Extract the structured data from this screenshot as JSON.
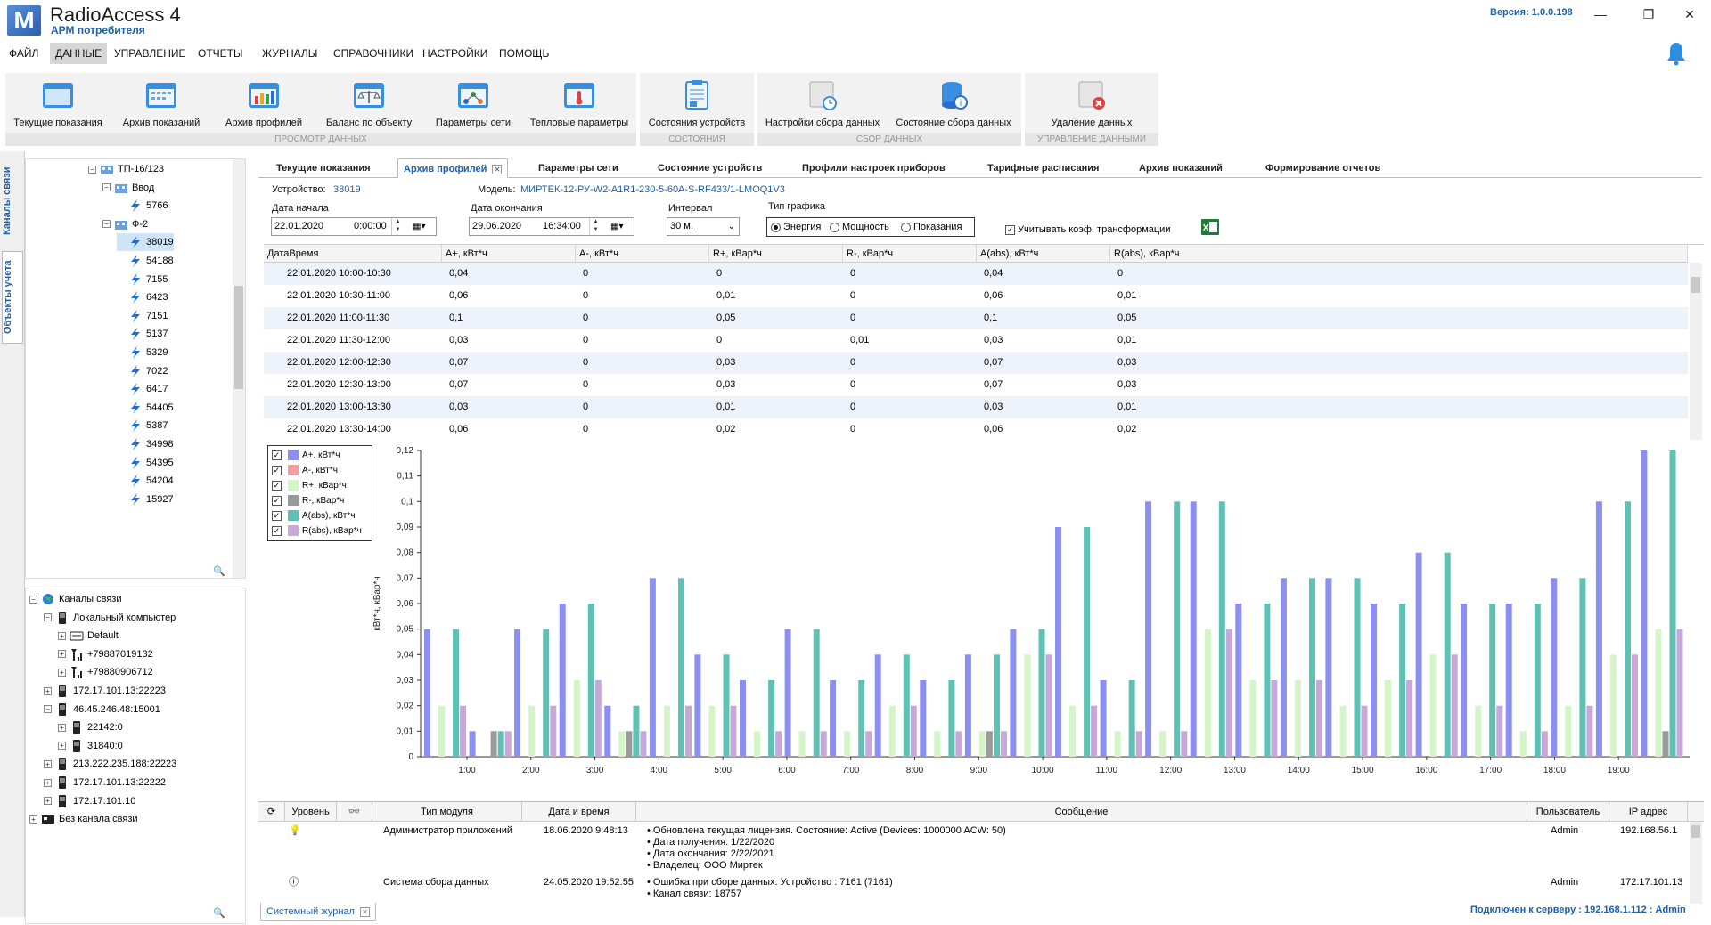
{
  "app": {
    "logo_letter": "M",
    "title": "RadioAccess 4",
    "subtitle": "АРМ потребителя",
    "version": "Версия:  1.0.0.198"
  },
  "menu": [
    "ФАЙЛ",
    "ДАННЫЕ",
    "УПРАВЛЕНИЕ",
    "ОТЧЕТЫ",
    "ЖУРНАЛЫ",
    "СПРАВОЧНИКИ",
    "НАСТРОЙКИ",
    "ПОМОЩЬ"
  ],
  "ribbon": {
    "groups": [
      {
        "title": "ПРОСМОТР ДАННЫХ",
        "buttons": [
          "Текущие показания",
          "Архив показаний",
          "Архив профилей",
          "Баланс по объекту",
          "Параметры сети",
          "Тепловые параметры"
        ]
      },
      {
        "title": "СОСТОЯНИЯ",
        "buttons": [
          "Состояния устройств"
        ]
      },
      {
        "title": "СБОР ДАННЫХ",
        "buttons": [
          "Настройки сбора данных",
          "Состояние сбора данных"
        ]
      },
      {
        "title": "УПРАВЛЕНИЕ ДАННЫМИ",
        "buttons": [
          "Удаление данных"
        ]
      }
    ]
  },
  "vtabs": [
    "Каналы связи",
    "Объекты учета"
  ],
  "tree_top": [
    {
      "label": "ТП-16/123",
      "indent": 0,
      "expander": "−",
      "icon": "folder"
    },
    {
      "label": "Ввод",
      "indent": 1,
      "expander": "−",
      "icon": "folder"
    },
    {
      "label": "5766",
      "indent": 2,
      "expander": "",
      "icon": "meter"
    },
    {
      "label": "Ф-2",
      "indent": 1,
      "expander": "−",
      "icon": "folder"
    },
    {
      "label": "38019",
      "indent": 2,
      "expander": "",
      "icon": "meter",
      "selected": true
    },
    {
      "label": "54188",
      "indent": 2,
      "expander": "",
      "icon": "meter"
    },
    {
      "label": "7155",
      "indent": 2,
      "expander": "",
      "icon": "meter"
    },
    {
      "label": "6423",
      "indent": 2,
      "expander": "",
      "icon": "meter"
    },
    {
      "label": "7151",
      "indent": 2,
      "expander": "",
      "icon": "meter"
    },
    {
      "label": "5137",
      "indent": 2,
      "expander": "",
      "icon": "meter"
    },
    {
      "label": "5329",
      "indent": 2,
      "expander": "",
      "icon": "meter"
    },
    {
      "label": "7022",
      "indent": 2,
      "expander": "",
      "icon": "meter"
    },
    {
      "label": "6417",
      "indent": 2,
      "expander": "",
      "icon": "meter"
    },
    {
      "label": "54405",
      "indent": 2,
      "expander": "",
      "icon": "meter"
    },
    {
      "label": "5387",
      "indent": 2,
      "expander": "",
      "icon": "meter"
    },
    {
      "label": "34998",
      "indent": 2,
      "expander": "",
      "icon": "meter"
    },
    {
      "label": "54395",
      "indent": 2,
      "expander": "",
      "icon": "meter"
    },
    {
      "label": "54204",
      "indent": 2,
      "expander": "",
      "icon": "meter"
    },
    {
      "label": "15927",
      "indent": 2,
      "expander": "",
      "icon": "meter"
    }
  ],
  "tree_bottom": [
    {
      "label": "Каналы связи",
      "indent": 0,
      "expander": "−",
      "icon": "globe"
    },
    {
      "label": "Локальный компьютер",
      "indent": 1,
      "expander": "−",
      "icon": "device"
    },
    {
      "label": "Default",
      "indent": 2,
      "expander": "+",
      "icon": "modem"
    },
    {
      "label": "+79887019132",
      "indent": 2,
      "expander": "+",
      "icon": "antenna"
    },
    {
      "label": "+79880906712",
      "indent": 2,
      "expander": "+",
      "icon": "antenna"
    },
    {
      "label": "172.17.101.13:22223",
      "indent": 1,
      "expander": "+",
      "icon": "device"
    },
    {
      "label": "46.45.246.48:15001",
      "indent": 1,
      "expander": "−",
      "icon": "device"
    },
    {
      "label": "22142:0",
      "indent": 2,
      "expander": "+",
      "icon": "device"
    },
    {
      "label": "31840:0",
      "indent": 2,
      "expander": "+",
      "icon": "device"
    },
    {
      "label": "213.222.235.188:22223",
      "indent": 1,
      "expander": "+",
      "icon": "device"
    },
    {
      "label": "172.17.101.13:22222",
      "indent": 1,
      "expander": "+",
      "icon": "device"
    },
    {
      "label": "172.17.101.10",
      "indent": 1,
      "expander": "+",
      "icon": "device"
    },
    {
      "label": "Без канала связи",
      "indent": 0,
      "expander": "+",
      "icon": "nochannel"
    }
  ],
  "content_tabs": [
    "Текущие показания",
    "Архив профилей",
    "Параметры сети",
    "Состояние устройств",
    "Профили настроек приборов",
    "Тарифные расписания",
    "Архив показаний",
    "Формирование отчетов"
  ],
  "filters": {
    "device_label": "Устройство:",
    "device_value": "38019",
    "model_label": "Модель:",
    "model_value": "МИРТЕК-12-РУ-W2-А1R1-230-5-60А-S-RF433/1-LMOQ1V3",
    "start_label": "Дата начала",
    "start_date": "22.01.2020",
    "start_time": "0:00:00",
    "end_label": "Дата окончания",
    "end_date": "29.06.2020",
    "end_time": "16:34:00",
    "interval_label": "Интервал",
    "interval_value": "30 м.",
    "graph_type_label": "Тип графика",
    "graph_types": [
      "Энергия",
      "Мощность",
      "Показания"
    ],
    "graph_type_selected": "Энергия",
    "transform_label": "Учитывать коэф. трансформации",
    "transform_checked": true
  },
  "grid": {
    "columns": [
      "ДатаВремя",
      "A+, кВт*ч",
      "A-, кВт*ч",
      "R+, кВар*ч",
      "R-, кВар*ч",
      "A(abs), кВт*ч",
      "R(abs), кВар*ч"
    ],
    "rows": [
      [
        "22.01.2020 10:00-10:30",
        "0,04",
        "0",
        "0",
        "0",
        "0,04",
        "0"
      ],
      [
        "22.01.2020 10:30-11:00",
        "0,06",
        "0",
        "0,01",
        "0",
        "0,06",
        "0,01"
      ],
      [
        "22.01.2020 11:00-11:30",
        "0,1",
        "0",
        "0,05",
        "0",
        "0,1",
        "0,05"
      ],
      [
        "22.01.2020 11:30-12:00",
        "0,03",
        "0",
        "0",
        "0,01",
        "0,03",
        "0,01"
      ],
      [
        "22.01.2020 12:00-12:30",
        "0,07",
        "0",
        "0,03",
        "0",
        "0,07",
        "0,03"
      ],
      [
        "22.01.2020 12:30-13:00",
        "0,07",
        "0",
        "0,03",
        "0",
        "0,07",
        "0,03"
      ],
      [
        "22.01.2020 13:00-13:30",
        "0,03",
        "0",
        "0,01",
        "0",
        "0,03",
        "0,01"
      ],
      [
        "22.01.2020 13:30-14:00",
        "0,06",
        "0",
        "0,02",
        "0",
        "0,06",
        "0,02"
      ]
    ]
  },
  "colors": {
    "a_plus": "#8a8ff0",
    "a_minus": "#f0a0a0",
    "r_plus": "#d4f5c8",
    "r_minus": "#9a9a9a",
    "a_abs": "#5fc0b4",
    "r_abs": "#c8a8d8",
    "accent": "#1f5fa8"
  },
  "chart_data": {
    "type": "bar",
    "ylabel": "кВт*ч, кВар*ч",
    "ylim": [
      0,
      0.12
    ],
    "yticks": [
      "0",
      "0,01",
      "0,02",
      "0,03",
      "0,04",
      "0,05",
      "0,06",
      "0,07",
      "0,08",
      "0,09",
      "0,1",
      "0,11",
      "0,12"
    ],
    "xticks": [
      "1:00",
      "2:00",
      "3:00",
      "4:00",
      "5:00",
      "6:00",
      "7:00",
      "8:00",
      "9:00",
      "10:00",
      "11:00",
      "12:00",
      "13:00",
      "14:00",
      "15:00",
      "16:00",
      "17:00",
      "18:00",
      "19:00"
    ],
    "legend_position": "top-left",
    "series": [
      {
        "name": "A+, кВт*ч",
        "values": [
          0.05,
          0.01,
          0.05,
          0.06,
          0.02,
          0.07,
          0.04,
          0.03,
          0.05,
          0.03,
          0.04,
          0.03,
          0.04,
          0.05,
          0.09,
          0.03,
          0.1,
          0.1,
          0.06,
          0.07,
          0.07,
          0.06,
          0.08,
          0.06,
          0.06,
          0.07,
          0.1,
          0.12
        ]
      },
      {
        "name": "A-, кВт*ч",
        "values": [
          0,
          0,
          0,
          0,
          0,
          0,
          0,
          0,
          0,
          0,
          0,
          0,
          0,
          0,
          0,
          0,
          0,
          0,
          0,
          0,
          0,
          0,
          0,
          0,
          0,
          0,
          0,
          0
        ]
      },
      {
        "name": "R+, кВар*ч",
        "values": [
          0.02,
          0,
          0.02,
          0.03,
          0.01,
          0.02,
          0.02,
          0.01,
          0.01,
          0.01,
          0.02,
          0.01,
          0.01,
          0.04,
          0.02,
          0.01,
          0.01,
          0.05,
          0.03,
          0.03,
          0.02,
          0.03,
          0.04,
          0.02,
          0.01,
          0.02,
          0.04,
          0.05
        ]
      },
      {
        "name": "R-, кВар*ч",
        "values": [
          0,
          0.01,
          0,
          0,
          0.01,
          0,
          0,
          0,
          0,
          0,
          0,
          0,
          0.01,
          0,
          0,
          0,
          0,
          0,
          0,
          0,
          0,
          0,
          0,
          0,
          0,
          0,
          0,
          0.01
        ]
      },
      {
        "name": "A(abs), кВт*ч",
        "values": [
          0.05,
          0.01,
          0.05,
          0.06,
          0.02,
          0.07,
          0.04,
          0.03,
          0.05,
          0.03,
          0.04,
          0.03,
          0.04,
          0.05,
          0.09,
          0.03,
          0.1,
          0.1,
          0.06,
          0.07,
          0.07,
          0.06,
          0.08,
          0.06,
          0.06,
          0.07,
          0.1,
          0.12
        ]
      },
      {
        "name": "R(abs), кВар*ч",
        "values": [
          0.02,
          0.01,
          0.02,
          0.03,
          0.01,
          0.02,
          0.02,
          0.01,
          0.01,
          0.01,
          0.02,
          0.01,
          0.01,
          0.04,
          0.02,
          0.01,
          0.01,
          0.05,
          0.03,
          0.03,
          0.02,
          0.03,
          0.04,
          0.02,
          0.01,
          0.02,
          0.04,
          0.05
        ]
      }
    ]
  },
  "log": {
    "columns": [
      "Уровень",
      "Тип модуля",
      "Дата и время",
      "Сообщение",
      "Пользователь",
      "IP адрес"
    ],
    "rows": [
      {
        "icon": "bulb-icon",
        "module": "Администратор приложений",
        "datetime": "18.06.2020 9:48:13",
        "message": [
          "Обновлена текущая лицензия. Состояние:  Active (Devices: 1000000 ACW: 50)",
          "Дата получения: 1/22/2020",
          "Дата окончания: 2/22/2021",
          "Владелец: ООО Миртек"
        ],
        "user": "Admin",
        "ip": "192.168.56.1"
      },
      {
        "icon": "info-icon",
        "module": "Система сбора данных",
        "datetime": "24.05.2020 19:52:55",
        "message": [
          "Ошибка при сборе данных. Устройство : 7161 (7161)",
          "Канал связи: 18757"
        ],
        "user": "Admin",
        "ip": "172.17.101.13"
      }
    ]
  },
  "bottom_tab": "Системный журнал",
  "status": "Подключен к серверу : 192.168.1.112 : Admin"
}
